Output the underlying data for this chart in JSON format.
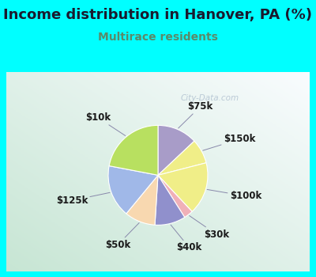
{
  "title": "Income distribution in Hanover, PA (%)",
  "subtitle": "Multirace residents",
  "title_color": "#1a1a2e",
  "subtitle_color": "#5a8a6a",
  "background_color": "#00FFFF",
  "watermark": "City-Data.com",
  "slices": [
    {
      "label": "$75k",
      "value": 13,
      "color": "#a89cc8"
    },
    {
      "label": "$150k",
      "value": 8,
      "color": "#f0ee88"
    },
    {
      "label": "$100k",
      "value": 17,
      "color": "#f0ee88"
    },
    {
      "label": "$30k",
      "value": 3,
      "color": "#f0b0b8"
    },
    {
      "label": "$40k",
      "value": 10,
      "color": "#9090cc"
    },
    {
      "label": "$50k",
      "value": 10,
      "color": "#f8d8b0"
    },
    {
      "label": "$125k",
      "value": 17,
      "color": "#a0b8e8"
    },
    {
      "label": "$10k",
      "value": 22,
      "color": "#b8e060"
    }
  ],
  "label_fontsize": 8.5,
  "title_fontsize": 13,
  "subtitle_fontsize": 10,
  "chart_bg_colors": [
    "#d8ede0",
    "#eef8f0",
    "#e0f0f8",
    "#f0f8f0"
  ]
}
